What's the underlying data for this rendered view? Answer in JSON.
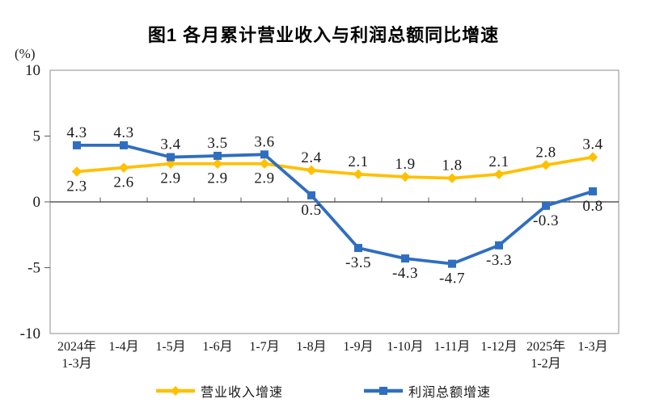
{
  "title": "图1  各月累计营业收入与利润总额同比增速",
  "y_axis": {
    "unit_label": "(%)"
  },
  "chart_data": {
    "type": "line",
    "title": "图1  各月累计营业收入与利润总额同比增速",
    "ylabel": "(%)",
    "ylim": [
      -10,
      10
    ],
    "grid": false,
    "legend_position": "bottom",
    "categories": [
      "2024年1-3月",
      "1-4月",
      "1-5月",
      "1-6月",
      "1-7月",
      "1-8月",
      "1-9月",
      "1-10月",
      "1-11月",
      "1-12月",
      "2025年1-2月",
      "1-3月"
    ],
    "x_tick_lines": [
      [
        "2024年",
        "1-3月"
      ],
      [
        "1-4月"
      ],
      [
        "1-5月"
      ],
      [
        "1-6月"
      ],
      [
        "1-7月"
      ],
      [
        "1-8月"
      ],
      [
        "1-9月"
      ],
      [
        "1-10月"
      ],
      [
        "1-11月"
      ],
      [
        "1-12月"
      ],
      [
        "2025年",
        "1-2月"
      ],
      [
        "1-3月"
      ]
    ],
    "y_ticks": [
      10,
      5,
      0,
      -5,
      -10
    ],
    "series": [
      {
        "name": "营业收入增速",
        "color": "#FFC000",
        "marker": "diamond",
        "values": [
          2.3,
          2.6,
          2.9,
          2.9,
          2.9,
          2.4,
          2.1,
          1.9,
          1.8,
          2.1,
          2.8,
          3.4
        ],
        "label_side": [
          "below",
          "below",
          "below",
          "below",
          "below",
          "above",
          "above",
          "above",
          "above",
          "above",
          "above",
          "above"
        ]
      },
      {
        "name": "利润总额增速",
        "color": "#2F6EC0",
        "marker": "square",
        "values": [
          4.3,
          4.3,
          3.4,
          3.5,
          3.6,
          0.5,
          -3.5,
          -4.3,
          -4.7,
          -3.3,
          -0.3,
          0.8
        ],
        "label_side": [
          "above",
          "above",
          "above",
          "above",
          "above",
          "below",
          "below",
          "below",
          "below",
          "below",
          "below",
          "below"
        ]
      }
    ]
  },
  "legend": {
    "items": [
      {
        "label": "营业收入增速",
        "color": "#FFC000",
        "marker": "diamond"
      },
      {
        "label": "利润总额增速",
        "color": "#2F6EC0",
        "marker": "square"
      }
    ]
  },
  "colors": {
    "axis_border": "#A0A0A0",
    "zero_line": "#595959",
    "text": "#1A1A1A"
  }
}
